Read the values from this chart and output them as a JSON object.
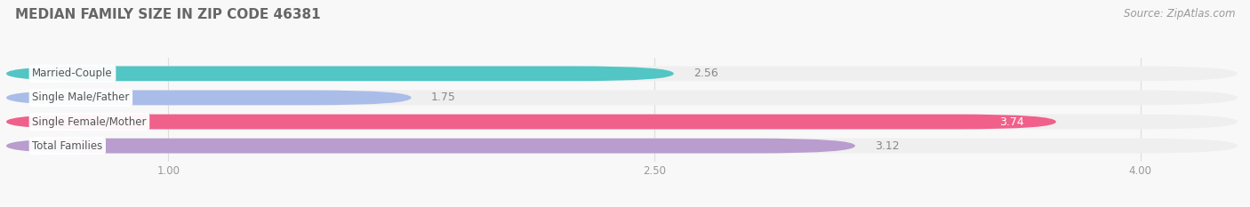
{
  "title": "MEDIAN FAMILY SIZE IN ZIP CODE 46381",
  "source": "Source: ZipAtlas.com",
  "categories": [
    "Married-Couple",
    "Single Male/Father",
    "Single Female/Mother",
    "Total Families"
  ],
  "values": [
    2.56,
    1.75,
    3.74,
    3.12
  ],
  "bar_colors": [
    "#52C5C5",
    "#AABCE8",
    "#F0608A",
    "#B99DCE"
  ],
  "bar_bg_color": "#EFEFEF",
  "xmin": 0.5,
  "xmax": 4.3,
  "data_min": 0.5,
  "data_max": 4.3,
  "xticks": [
    1.0,
    2.5,
    4.0
  ],
  "xtick_labels": [
    "1.00",
    "2.50",
    "4.00"
  ],
  "title_fontsize": 11,
  "label_fontsize": 8.5,
  "value_fontsize": 9,
  "source_fontsize": 8.5,
  "bar_height": 0.62,
  "background_color": "#F8F8F8",
  "value_inside_color": "#FFFFFF",
  "value_outside_color": "#888888",
  "inside_threshold": 3.5
}
